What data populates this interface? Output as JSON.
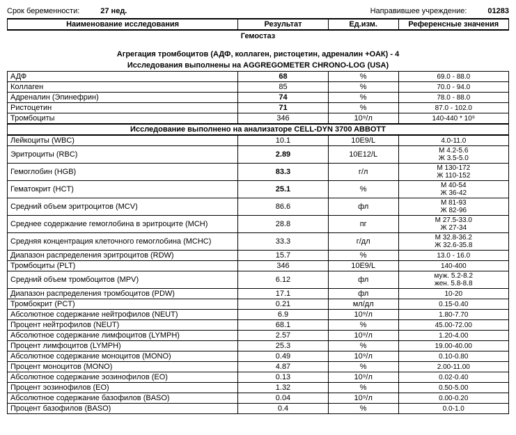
{
  "top": {
    "preg_label": "Срок беременности:",
    "preg_val": "27 нед.",
    "inst_label": "Направившее учреждение:",
    "inst_val": "01283"
  },
  "headers": {
    "name": "Наименование исследования",
    "result": "Результат",
    "unit": "Ед.изм.",
    "ref": "Референсные значения"
  },
  "section1": "Гемостаз",
  "subtitle1": "Агрегация тромбоцитов (АДФ, коллаген, ристоцетин, адреналин +ОАК) - 4",
  "subtitle2": "Исследования выполнены на AGGREGOMETER CHRONO-LOG (USA)",
  "group1": [
    {
      "name": "АДФ",
      "result": "68",
      "unit": "%",
      "ref": "69.0 - 88.0",
      "bold": true
    },
    {
      "name": "Коллаген",
      "result": "85",
      "unit": "%",
      "ref": "70.0 - 94.0"
    },
    {
      "name": "Адреналин (Эпинефрин)",
      "result": "74",
      "unit": "%",
      "ref": "78.0 - 88.0",
      "bold": true
    },
    {
      "name": "Ристоцетин",
      "result": "71",
      "unit": "%",
      "ref": "87.0 - 102.0",
      "bold": true
    },
    {
      "name": "Тромбоциты",
      "result": "346",
      "unit": "10⁹/л",
      "ref": "140-440 * 10⁹"
    }
  ],
  "subtitle3": "Исследование выполнено на анализаторе CELL-DYN 3700 ABBOTT",
  "group2": [
    {
      "name": "Лейкоциты (WBC)",
      "result": "10.1",
      "unit": "10E9/L",
      "ref": "4.0-11.0"
    },
    {
      "name": "Эритроциты (RBC)",
      "result": "2.89",
      "unit": "10E12/L",
      "ref": "М 4.2-5.6\nЖ 3.5-5.0",
      "bold": true
    },
    {
      "name": "Гемоглобин (HGB)",
      "result": "83.3",
      "unit": "г/л",
      "ref": "М 130-172\nЖ 110-152",
      "bold": true
    },
    {
      "name": "Гематокрит (HCT)",
      "result": "25.1",
      "unit": "%",
      "ref": "М 40-54\nЖ 36-42",
      "bold": true
    },
    {
      "name": "Средний объем эритроцитов (MCV)",
      "result": "86.6",
      "unit": "фл",
      "ref": "М 81-93\nЖ 82-96"
    },
    {
      "name": "Среднее содержание гемоглобина в эритроците (MCH)",
      "result": "28.8",
      "unit": "пг",
      "ref": "М 27.5-33.0\nЖ 27-34"
    },
    {
      "name": "Средняя концентрация клеточного гемоглобина (MCHC)",
      "result": "33.3",
      "unit": "г/дл",
      "ref": "М 32.8-36.2\nЖ 32.6-35.8"
    },
    {
      "name": "Диапазон распределения эритроцитов (RDW)",
      "result": "15.7",
      "unit": "%",
      "ref": "13.0 - 16.0"
    },
    {
      "name": "Тромбоциты (PLT)",
      "result": "346",
      "unit": "10E9/L",
      "ref": "140-400"
    },
    {
      "name": "Средний объем тромбоцитов (MPV)",
      "result": "6.12",
      "unit": "фл",
      "ref": "муж. 5.2-8.2\nжен. 5.8-8.8"
    },
    {
      "name": "Диапазон распределения тромбоцитов (PDW)",
      "result": "17.1",
      "unit": "фл",
      "ref": "10-20"
    },
    {
      "name": "Тромбокрит (PCT)",
      "result": "0.21",
      "unit": "мл/дл",
      "ref": "0.15-0.40"
    },
    {
      "name": "Абсолютное содержание нейтрофилов (NEUT)",
      "result": "6.9",
      "unit": "10⁹/л",
      "ref": "1.80-7.70"
    },
    {
      "name": "Процент нейтрофилов (NEUT)",
      "result": "68.1",
      "unit": "%",
      "ref": "45.00-72.00"
    },
    {
      "name": "Абсолютное содержание лимфоцитов (LYMPH)",
      "result": "2.57",
      "unit": "10⁹/л",
      "ref": "1.20-4.00"
    },
    {
      "name": "Процент лимфоцитов (LYMPH)",
      "result": "25.3",
      "unit": "%",
      "ref": "19.00-40.00"
    },
    {
      "name": "Абсолютное содержание моноцитов (MONO)",
      "result": "0.49",
      "unit": "10⁹/л",
      "ref": "0.10-0.80"
    },
    {
      "name": "Процент моноцитов (MONO)",
      "result": "4.87",
      "unit": "%",
      "ref": "2.00-11.00"
    },
    {
      "name": "Абсолютное содержание эозинофилов (EO)",
      "result": "0.13",
      "unit": "10⁹/л",
      "ref": "0.02-0.40"
    },
    {
      "name": "Процент эозинофилов (EO)",
      "result": "1.32",
      "unit": "%",
      "ref": "0.50-5.00"
    },
    {
      "name": "Абсолютное содержание базофилов (BASO)",
      "result": "0.04",
      "unit": "10⁹/л",
      "ref": "0.00-0.20"
    },
    {
      "name": "Процент базофилов (BASO)",
      "result": "0.4",
      "unit": "%",
      "ref": "0.0-1.0"
    }
  ]
}
